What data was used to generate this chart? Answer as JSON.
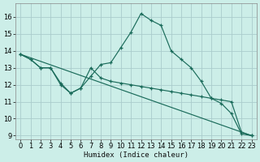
{
  "xlabel": "Humidex (Indice chaleur)",
  "xlim": [
    -0.5,
    23.5
  ],
  "ylim": [
    8.8,
    16.8
  ],
  "yticks": [
    9,
    10,
    11,
    12,
    13,
    14,
    15,
    16
  ],
  "xticks": [
    0,
    1,
    2,
    3,
    4,
    5,
    6,
    7,
    8,
    9,
    10,
    11,
    12,
    13,
    14,
    15,
    16,
    17,
    18,
    19,
    20,
    21,
    22,
    23
  ],
  "background_color": "#cceee8",
  "grid_color": "#aacccc",
  "line_color": "#1a6b5a",
  "line1_x": [
    0,
    1,
    2,
    3,
    4,
    5,
    6,
    7,
    8,
    9,
    10,
    11,
    12,
    13,
    14,
    15,
    16,
    17,
    18,
    19,
    20,
    21,
    22,
    23
  ],
  "line1_y": [
    13.8,
    13.5,
    13.0,
    13.0,
    12.0,
    11.5,
    11.8,
    12.5,
    13.2,
    13.3,
    14.2,
    15.1,
    16.2,
    15.8,
    15.5,
    14.0,
    13.5,
    13.0,
    12.2,
    11.2,
    10.9,
    10.3,
    9.1,
    9.0
  ],
  "line2_x": [
    0,
    23
  ],
  "line2_y": [
    13.8,
    9.0
  ],
  "line3_x": [
    0,
    1,
    2,
    3,
    4,
    5,
    6,
    7,
    8,
    9,
    10,
    11,
    12,
    13,
    14,
    15,
    16,
    17,
    18,
    19,
    20,
    21,
    22,
    23
  ],
  "line3_y": [
    13.8,
    13.5,
    13.0,
    13.0,
    12.1,
    11.5,
    11.8,
    13.0,
    12.4,
    12.2,
    12.1,
    12.0,
    11.9,
    11.8,
    11.7,
    11.6,
    11.5,
    11.4,
    11.3,
    11.2,
    11.1,
    11.0,
    9.2,
    9.0
  ]
}
